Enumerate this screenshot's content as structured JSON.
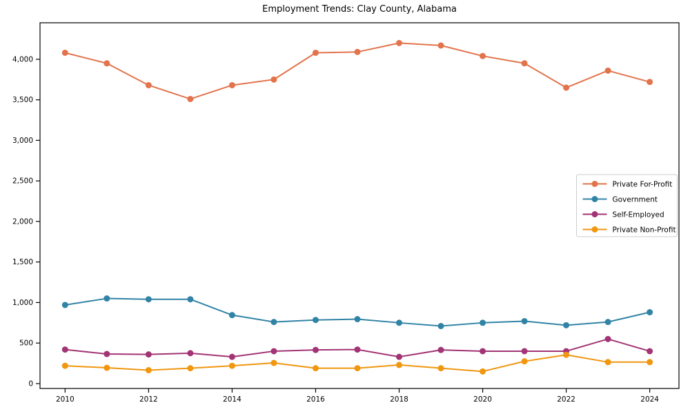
{
  "chart_data": {
    "type": "line",
    "title": "Employment Trends: Clay County, Alabama",
    "xlabel": "",
    "ylabel": "",
    "x": [
      2010,
      2011,
      2012,
      2013,
      2014,
      2015,
      2016,
      2017,
      2018,
      2019,
      2020,
      2021,
      2022,
      2023,
      2024
    ],
    "series": [
      {
        "name": "Private For-Profit",
        "color": "#E2734B",
        "values": [
          4080,
          3950,
          3680,
          3510,
          3680,
          3750,
          4080,
          4090,
          4200,
          4170,
          4040,
          3950,
          3650,
          3860,
          3720
        ]
      },
      {
        "name": "Government",
        "color": "#3183A6",
        "values": [
          970,
          1050,
          1040,
          1040,
          845,
          760,
          785,
          795,
          750,
          710,
          750,
          770,
          720,
          760,
          880
        ]
      },
      {
        "name": "Self-Employed",
        "color": "#A23374",
        "values": [
          420,
          365,
          360,
          375,
          330,
          400,
          415,
          420,
          330,
          415,
          400,
          400,
          400,
          550,
          400
        ]
      },
      {
        "name": "Private Non-Profit",
        "color": "#F0960F",
        "values": [
          220,
          195,
          165,
          190,
          220,
          255,
          190,
          190,
          230,
          190,
          150,
          275,
          355,
          265,
          265
        ]
      }
    ],
    "xticks": [
      2010,
      2012,
      2014,
      2016,
      2018,
      2020,
      2022,
      2024
    ],
    "yticks": [
      0,
      500,
      1000,
      1500,
      2000,
      2500,
      3000,
      3500,
      4000
    ],
    "ytick_labels": [
      "0",
      "500",
      "1,000",
      "1,500",
      "2,000",
      "2,500",
      "3,000",
      "3,500",
      "4,000"
    ],
    "xlim": [
      2009.4,
      2024.7
    ],
    "ylim": [
      -60,
      4450
    ],
    "grid": false,
    "legend_position": "center right",
    "legend_labels": [
      "Private For-Profit",
      "Government",
      "Self-Employed",
      "Private Non-Profit"
    ]
  },
  "style": {
    "axis_color": "#000000",
    "tick_label_color": "#000000",
    "legend_border_color": "#cccccc",
    "legend_bg_color": "#ffffff",
    "marker_radius": 4.5,
    "line_width": 2
  }
}
